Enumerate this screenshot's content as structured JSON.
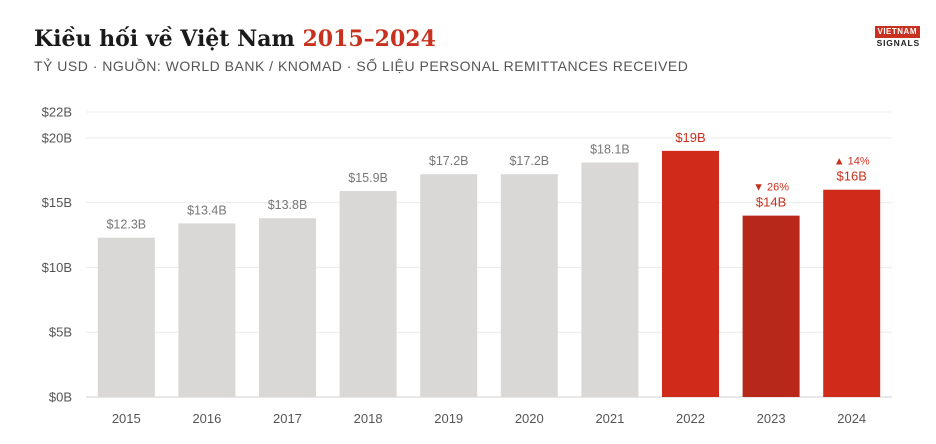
{
  "header": {
    "title_main": "Kiều hối về Việt Nam",
    "title_accent": "2015–2024",
    "subtitle": "TỶ USD · NGUỒN: WORLD BANK / KNOMAD · SỐ LIỆU PERSONAL REMITTANCES RECEIVED"
  },
  "logo": {
    "line1": "VIETNAM",
    "line2": "SIGNALS"
  },
  "colors": {
    "normal": "#d9d8d6",
    "highlight": "#cf2a1a",
    "highlight_dark": "#b8281a",
    "accent_text": "#c8311f"
  },
  "chart_data": {
    "type": "bar",
    "categories": [
      "2015",
      "2016",
      "2017",
      "2018",
      "2019",
      "2020",
      "2021",
      "2022",
      "2023",
      "2024"
    ],
    "values": [
      12.3,
      13.4,
      13.8,
      15.9,
      17.2,
      17.2,
      18.1,
      19,
      14,
      16
    ],
    "labels": [
      "$12.3B",
      "$13.4B",
      "$13.8B",
      "$15.9B",
      "$17.2B",
      "$17.2B",
      "$18.1B",
      "$19B",
      "$14B",
      "$16B"
    ],
    "highlight": [
      false,
      false,
      false,
      false,
      false,
      false,
      false,
      true,
      true,
      true
    ],
    "changes": [
      "",
      "",
      "",
      "",
      "",
      "",
      "",
      "",
      "▼ 26%",
      "▲ 14%"
    ],
    "ylim": [
      0,
      22
    ],
    "yticks": [
      0,
      5,
      10,
      15,
      20,
      22
    ],
    "ytick_labels": [
      "$0B",
      "$5B",
      "$10B",
      "$15B",
      "$20B",
      "$22B"
    ],
    "grid": true,
    "title": "Kiều hối về Việt Nam 2015–2024",
    "xlabel": "",
    "ylabel": ""
  }
}
